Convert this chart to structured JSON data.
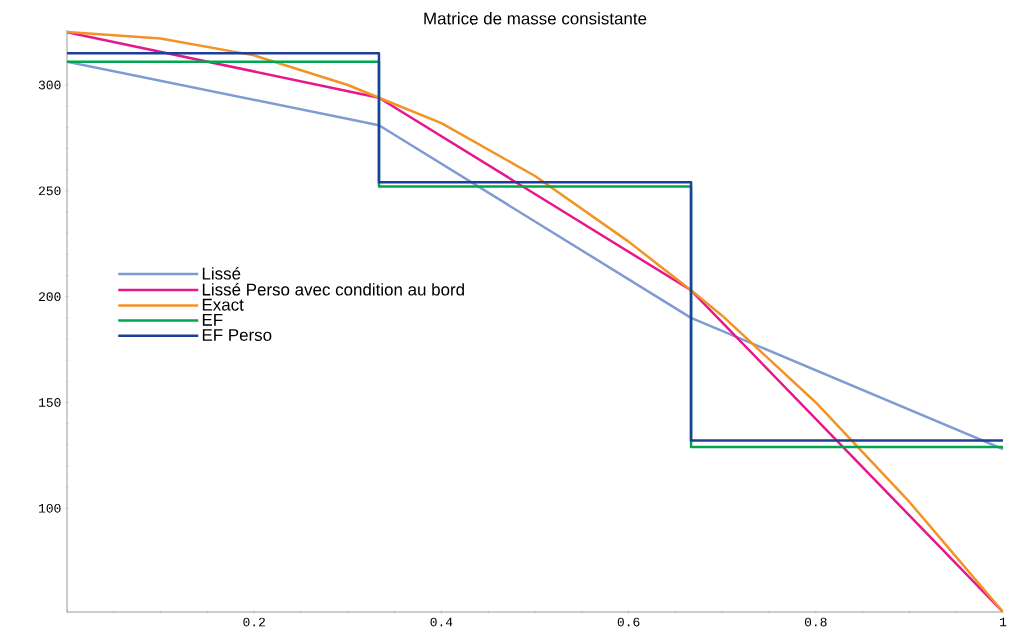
{
  "chart_data": {
    "type": "line",
    "title": "Matrice de masse consistante",
    "xlim": [
      0,
      1
    ],
    "ylim": [
      51,
      326
    ],
    "xticks": [
      {
        "value": 0,
        "label": null
      },
      0.2,
      0.4,
      0.6,
      0.8,
      1
    ],
    "yticks": [
      100,
      150,
      200,
      250,
      300
    ],
    "legend": "left",
    "grid": false,
    "series": [
      {
        "name": "Lissé",
        "color": "#7f9bd3",
        "x": [
          0,
          0.3333,
          0.6667,
          1
        ],
        "values": [
          311,
          281,
          190,
          128
        ]
      },
      {
        "name": "Lissé Perso avec condition au bord",
        "color": "#e8168a",
        "x": [
          0,
          0.3333,
          0.6667,
          1
        ],
        "values": [
          325,
          294,
          203,
          51
        ]
      },
      {
        "name": "Exact",
        "color": "#f39325",
        "x": [
          0,
          0.1,
          0.2,
          0.3,
          0.3333,
          0.4,
          0.5,
          0.6,
          0.6667,
          0.7,
          0.8,
          0.9,
          1
        ],
        "values": [
          325,
          322,
          314,
          300,
          294,
          282,
          257,
          226,
          203,
          191,
          150,
          103,
          51
        ]
      },
      {
        "name": "EF",
        "color": "#00a650",
        "type": "step",
        "x": [
          0,
          0.3333,
          0.6667,
          1
        ],
        "values": [
          311,
          252,
          129,
          129
        ]
      },
      {
        "name": "EF Perso",
        "color": "#1d3f99",
        "type": "step",
        "x": [
          0,
          0.3333,
          0.6667,
          1
        ],
        "values": [
          315,
          254,
          132,
          132
        ]
      }
    ]
  }
}
